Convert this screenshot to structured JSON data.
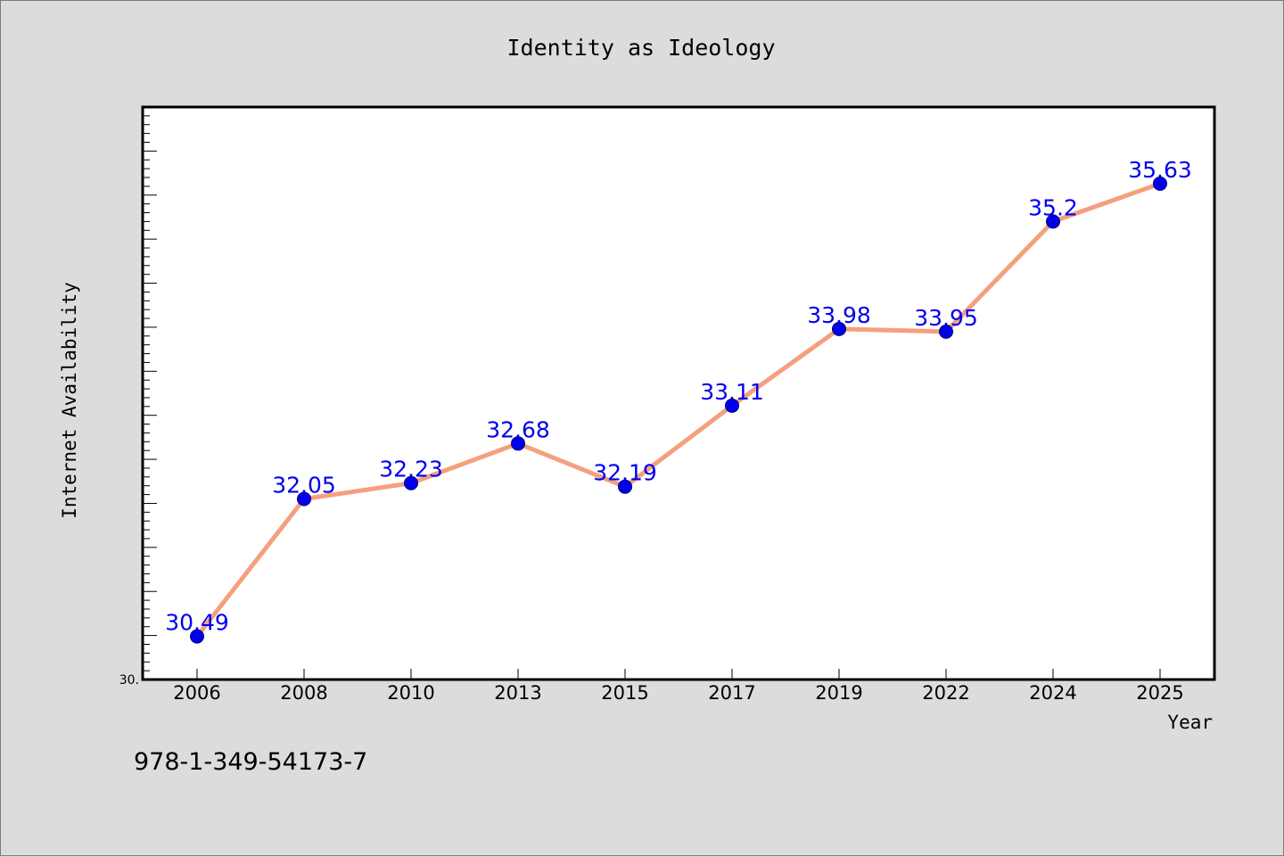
{
  "chart_data": {
    "type": "line",
    "title": "Identity as Ideology",
    "xlabel": "Year",
    "ylabel": "Internet Availability",
    "categories": [
      "2006",
      "2008",
      "2010",
      "2013",
      "2015",
      "2017",
      "2019",
      "2022",
      "2024",
      "2025"
    ],
    "series": [
      {
        "values": [
          30.49,
          32.05,
          32.23,
          32.68,
          32.19,
          33.11,
          33.98,
          33.95,
          35.2,
          35.63
        ]
      }
    ],
    "data_labels": [
      "30.49",
      "32.05",
      "32.23",
      "32.68",
      "32.19",
      "33.11",
      "33.98",
      "33.95",
      "35.2",
      "35.63"
    ],
    "y_tick_labels": [
      "30."
    ],
    "ylim": [
      30.0,
      36.5
    ],
    "grid": false,
    "legend": "none",
    "colors": {
      "line": "#f4a07f",
      "marker": "#0000ee",
      "marker_edge": "#00007a",
      "data_label": "#0000ee",
      "plot_background": "#ffffff",
      "page_background": "#dcdcdc"
    }
  },
  "footer": {
    "isbn": "978-1-349-54173-7"
  }
}
